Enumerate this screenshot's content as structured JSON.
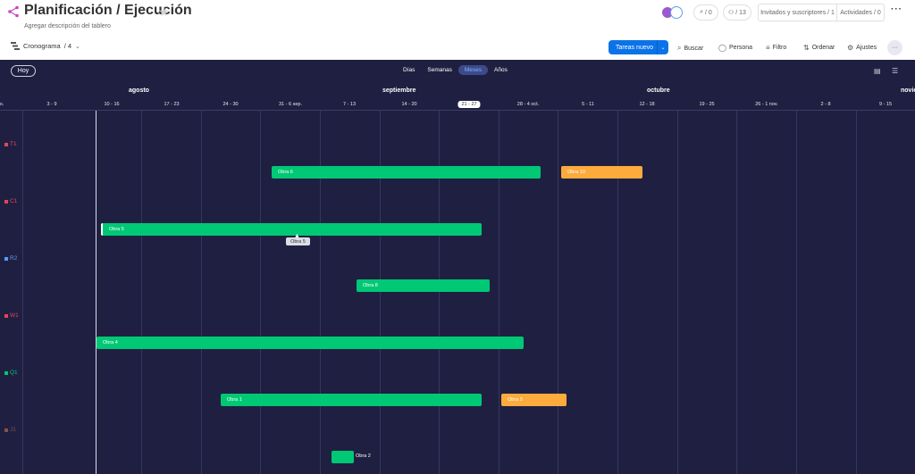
{
  "header": {
    "title": "Planificación / Ejecución",
    "subtitle": "Agregar descripción del tablero",
    "view_name": "Cronograma",
    "view_count": "/ 4",
    "updates_count": "/ 0",
    "integrations_count": "/ 13",
    "invited_label": "Invitados y suscriptores / 1",
    "activity_label": "Actividades / 0"
  },
  "toolbar": {
    "new_item": "Tareas nuevo",
    "search": "Buscar",
    "person": "Persona",
    "filter": "Filtro",
    "sort": "Ordenar",
    "settings": "Ajustes"
  },
  "timeline": {
    "today_label": "Hoy",
    "scales": [
      "Días",
      "Semanas",
      "Meses",
      "Años"
    ],
    "active_scale": "Meses",
    "months": [
      "agosto",
      "septiembre",
      "octubre",
      "novie"
    ],
    "weeks": [
      "o.",
      "3 - 9",
      "10 - 16",
      "17 - 23",
      "24 - 30",
      "31 - 6 sep.",
      "7 - 13",
      "14 - 20",
      "21 - 27",
      "28 - 4 oct.",
      "5 - 11",
      "12 - 18",
      "19 - 25",
      "26 - 1 nov.",
      "2 - 8",
      "9 - 15"
    ],
    "current_week": "21 - 27"
  },
  "groups": [
    {
      "label": "T1",
      "color": "#e2445c"
    },
    {
      "label": "C1",
      "color": "#e2445c"
    },
    {
      "label": "R2",
      "color": "#579bfc"
    },
    {
      "label": "W1",
      "color": "#e2445c"
    },
    {
      "label": "Q1",
      "color": "#00c875"
    },
    {
      "label": "J1",
      "color": "#7f5347"
    }
  ],
  "items": [
    {
      "label": "Obra 6",
      "status": "green"
    },
    {
      "label": "Obra 10",
      "status": "orange"
    },
    {
      "label": "Obra 5",
      "status": "green"
    },
    {
      "label": "Obra 8",
      "status": "green"
    },
    {
      "label": "Obra 4",
      "status": "green"
    },
    {
      "label": "Obra 1",
      "status": "green"
    },
    {
      "label": "Obra 9",
      "status": "orange"
    },
    {
      "label": "Obra 2",
      "status": "green"
    }
  ],
  "tooltip": "Obra 5",
  "colors": {
    "bar_green": "#00c875",
    "bar_orange": "#fdab3d",
    "background": "#1f2041",
    "primary": "#0b73e8"
  },
  "icons": [
    "share-icon",
    "star-icon",
    "search-icon",
    "person-icon",
    "filter-icon",
    "sort-icon",
    "settings-icon",
    "more-icon",
    "export-icon",
    "collapse-icon"
  ]
}
